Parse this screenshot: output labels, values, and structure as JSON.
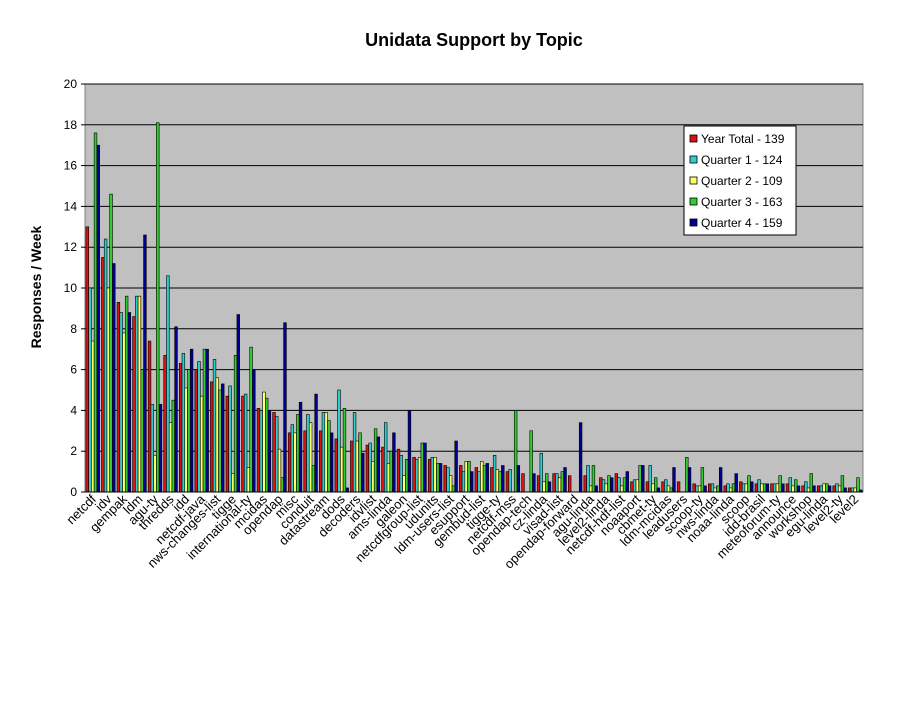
{
  "chart_data": {
    "type": "bar",
    "title": "Unidata Support by Topic",
    "xlabel": "",
    "ylabel": "Responses / Week",
    "ylim": [
      0,
      20
    ],
    "yticks": [
      0,
      2,
      4,
      6,
      8,
      10,
      12,
      14,
      16,
      18,
      20
    ],
    "grid": true,
    "legend_position": "top-right",
    "colors": {
      "plot_background": "#c0c0c0",
      "gridline": "#000000",
      "bar_outline": "#000000"
    },
    "categories": [
      "netcdf",
      "idv",
      "gempak",
      "ldm",
      "agu-ty",
      "thredds",
      "idd",
      "netcdf-java",
      "nws-changes-list",
      "tigge",
      "international-ty",
      "mcidas",
      "opendap",
      "misc",
      "conduit",
      "datastream",
      "dods",
      "decoders",
      "idvlist",
      "ams-linda",
      "galeon",
      "netcdfgroup-list",
      "udunits",
      "ldm-users-list",
      "esupport",
      "gembud-list",
      "tigge-ty",
      "netcdf-mss",
      "opendap-tech",
      "cz-linda",
      "visad-list",
      "opendap-forward",
      "agu-linda",
      "level2-linda",
      "netcdf-hdf-list",
      "noaaport",
      "cbmet-ty",
      "ldm-mcidas",
      "leadusers",
      "scoop-ty",
      "nws-linda",
      "noaa-linda",
      "scoop",
      "idd-brasil",
      "meteoforum-ty",
      "announce",
      "workshop",
      "egu-linda",
      "level2-ty",
      "level2"
    ],
    "series": [
      {
        "name": "Year Total - 139",
        "color": "#dd1111",
        "values": [
          13.0,
          11.5,
          9.3,
          8.6,
          7.4,
          6.7,
          6.3,
          6.0,
          5.4,
          4.7,
          4.7,
          4.1,
          3.9,
          2.9,
          3.0,
          3.0,
          2.6,
          2.5,
          2.3,
          2.2,
          2.1,
          1.7,
          1.6,
          1.3,
          1.3,
          1.2,
          1.2,
          1.0,
          0.9,
          0.8,
          0.9,
          0.8,
          0.8,
          0.7,
          0.9,
          0.5,
          0.5,
          0.5,
          0.5,
          0.4,
          0.4,
          0.3,
          0.5,
          0.4,
          0.4,
          0.4,
          0.3,
          0.3,
          0.3,
          0.2
        ]
      },
      {
        "name": "Quarter 1 - 124",
        "color": "#33cccc",
        "values": [
          10.0,
          12.4,
          8.8,
          9.6,
          4.3,
          10.6,
          6.8,
          6.4,
          6.5,
          5.2,
          4.8,
          4.0,
          3.7,
          3.3,
          3.8,
          3.9,
          5.0,
          3.9,
          2.4,
          3.4,
          1.8,
          1.6,
          1.7,
          1.2,
          1.0,
          1.0,
          1.8,
          1.1,
          0.0,
          1.9,
          0.9,
          0.0,
          1.3,
          0.6,
          0.7,
          0.6,
          1.3,
          0.6,
          0.0,
          0.3,
          0.4,
          0.4,
          0.4,
          0.6,
          0.4,
          0.7,
          0.5,
          0.3,
          0.4,
          0.2
        ]
      },
      {
        "name": "Quarter 2 - 109",
        "color": "#ffff66",
        "values": [
          7.4,
          10.0,
          7.8,
          9.6,
          1.8,
          3.4,
          5.1,
          4.7,
          5.6,
          0.9,
          1.2,
          4.9,
          2.1,
          2.9,
          3.4,
          3.9,
          2.2,
          2.5,
          1.5,
          1.4,
          0.8,
          1.7,
          1.7,
          0.8,
          1.5,
          1.5,
          1.1,
          0.0,
          0.0,
          0.5,
          0.7,
          0.0,
          0.3,
          0.4,
          0.3,
          0.6,
          0.4,
          0.3,
          0.0,
          0.3,
          0.2,
          0.2,
          0.4,
          0.4,
          0.4,
          0.3,
          0.2,
          0.4,
          0.3,
          0.2
        ]
      },
      {
        "name": "Quarter 3 - 163",
        "color": "#33cc33",
        "values": [
          17.6,
          14.6,
          9.6,
          6.0,
          18.1,
          4.5,
          6.0,
          7.0,
          5.0,
          6.7,
          7.1,
          4.6,
          0.7,
          3.8,
          1.3,
          3.5,
          4.1,
          2.9,
          3.1,
          2.0,
          1.6,
          2.4,
          1.4,
          0.3,
          1.5,
          1.3,
          1.0,
          4.0,
          3.0,
          0.9,
          1.0,
          0.0,
          1.3,
          0.8,
          0.7,
          1.3,
          0.7,
          0.2,
          1.7,
          1.2,
          0.3,
          0.4,
          0.8,
          0.4,
          0.8,
          0.6,
          0.9,
          0.4,
          0.8,
          0.7
        ]
      },
      {
        "name": "Quarter 4 - 159",
        "color": "#000099",
        "values": [
          17.0,
          11.2,
          8.8,
          12.6,
          4.3,
          8.1,
          7.0,
          7.0,
          5.3,
          8.7,
          6.0,
          4.0,
          8.3,
          4.4,
          4.8,
          2.9,
          0.2,
          1.9,
          2.7,
          2.9,
          4.0,
          2.4,
          1.4,
          2.5,
          1.0,
          1.4,
          1.3,
          1.3,
          0.9,
          0.5,
          1.2,
          3.4,
          0.3,
          0.7,
          1.0,
          1.3,
          0.2,
          1.2,
          1.2,
          0.3,
          1.2,
          0.9,
          0.5,
          0.4,
          0.4,
          0.3,
          0.3,
          0.3,
          0.2,
          0.1
        ]
      }
    ]
  }
}
